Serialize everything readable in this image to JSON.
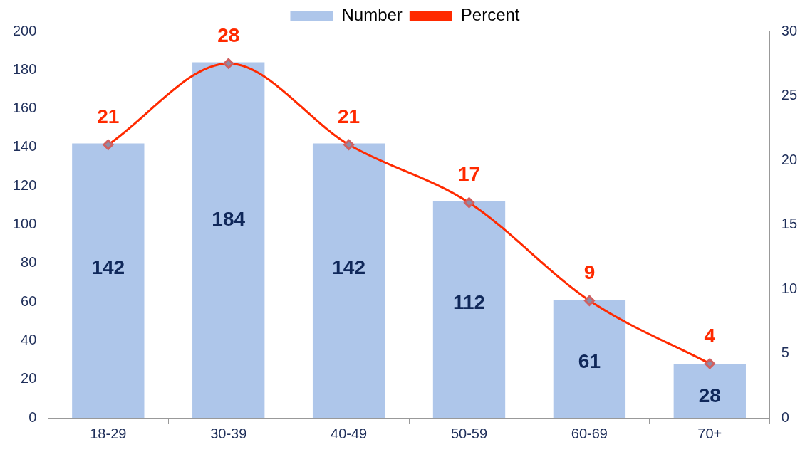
{
  "chart_data": {
    "type": "bar",
    "categories": [
      "18-29",
      "30-39",
      "40-49",
      "50-59",
      "60-69",
      "70+"
    ],
    "series": [
      {
        "name": "Number",
        "color": "#aec6ea",
        "values": [
          142,
          184,
          142,
          112,
          61,
          28
        ],
        "value_labels": [
          "142",
          "184",
          "142",
          "112",
          "61",
          "28"
        ]
      },
      {
        "name": "Percent",
        "type": "line",
        "axis": "y2",
        "color": "#ff2a00",
        "values": [
          21.2,
          27.5,
          21.2,
          16.7,
          9.1,
          4.2
        ],
        "value_labels": [
          "21",
          "28",
          "21",
          "17",
          "9",
          "4"
        ]
      }
    ],
    "ylim": [
      0,
      200
    ],
    "yticks": [
      0,
      20,
      40,
      60,
      80,
      100,
      120,
      140,
      160,
      180,
      200
    ],
    "y2lim": [
      0,
      30
    ],
    "y2ticks": [
      0,
      5,
      10,
      15,
      20,
      25,
      30
    ],
    "grid": false,
    "legend": "top",
    "marker": "diamond",
    "line_style": "solid"
  }
}
